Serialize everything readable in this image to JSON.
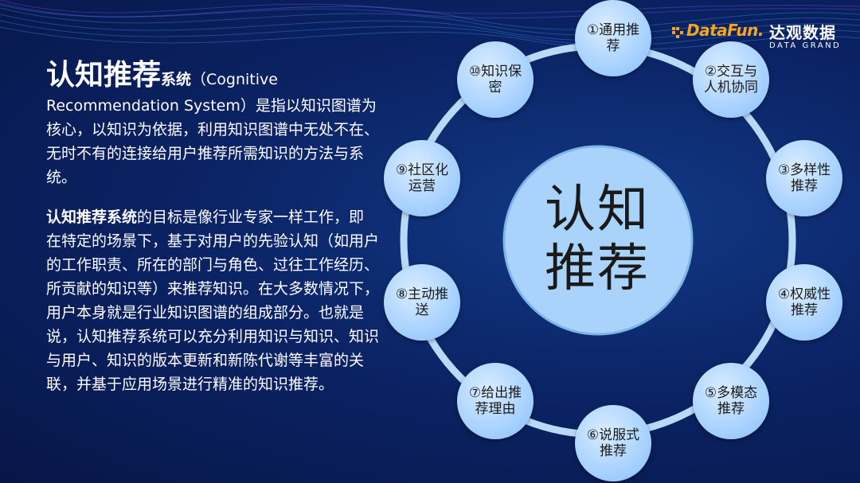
{
  "logo": {
    "datafun": "DataFun.",
    "brand": "达观数据",
    "brand_sub": "DATA GRAND"
  },
  "intro": {
    "title_big": "认知推荐",
    "title_small": "系统",
    "text": "（Cognitive Recommendation System）是指以知识图谱为核心，以知识为依据，利用知识图谱中无处不在、无时不有的连接给用户推荐所需知识的方法与系统。"
  },
  "goal": {
    "lead": "认知推荐系统",
    "text": "的目标是像行业专家一样工作，即在特定的场景下，基于对用户的先验认知（如用户的工作职责、所在的部门与角色、过往工作经历、所贡献的知识等）来推荐知识。在大多数情况下，用户本身就是行业知识图谱的组成部分。也就是说，认知推荐系统可以充分利用知识与知识、知识与用户、知识的版本更新和新陈代谢等丰富的关联，并基于应用场景进行精准的知识推荐。"
  },
  "diagram": {
    "center": "认知推荐",
    "nodes": [
      {
        "label": "①通用推荐"
      },
      {
        "label": "②交互与人机协同"
      },
      {
        "label": "③多样性推荐"
      },
      {
        "label": "④权威性推荐"
      },
      {
        "label": "⑤多模态推荐"
      },
      {
        "label": "⑥说服式推荐"
      },
      {
        "label": "⑦给出推荐理由"
      },
      {
        "label": "⑧主动推送"
      },
      {
        "label": "⑨社区化运营"
      },
      {
        "label": "⑩知识保密"
      }
    ]
  }
}
